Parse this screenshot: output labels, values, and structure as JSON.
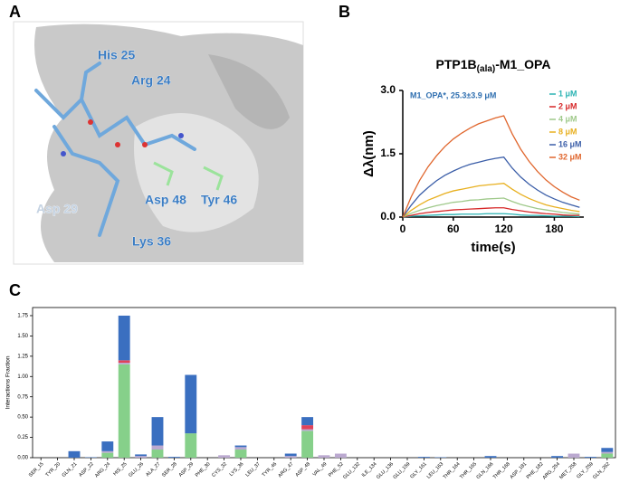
{
  "panels": [
    "A",
    "B",
    "C"
  ],
  "panel_a": {
    "labels": [
      "His 25",
      "Arg 24",
      "Asp 29",
      "Asp 48",
      "Tyr 46",
      "Lys 36"
    ]
  },
  "chart_data": [
    {
      "type": "line",
      "title": "PTP1B",
      "title_subscript": "(ala)",
      "title_suffix": "-M1_OPA",
      "annotation": "M1_OPA*, 25.3±3.9 μM",
      "xlabel": "time(s)",
      "ylabel": "Δλ(nm)",
      "x": [
        0,
        10,
        20,
        30,
        40,
        50,
        60,
        70,
        80,
        90,
        100,
        110,
        120,
        130,
        140,
        150,
        160,
        170,
        180,
        190,
        200,
        210
      ],
      "xlim": [
        0,
        215
      ],
      "xticks": [
        0,
        60,
        120,
        180
      ],
      "ylim": [
        0,
        3
      ],
      "yticks": [
        {
          "value": 0,
          "label": "0.0"
        },
        1.5,
        {
          "value": 3,
          "label": "3.0"
        }
      ],
      "legend": "upper right",
      "series": [
        {
          "name": "1 μM",
          "color": "#2bb3b3",
          "values": [
            0,
            0.02,
            0.03,
            0.04,
            0.05,
            0.06,
            0.06,
            0.07,
            0.07,
            0.07,
            0.08,
            0.08,
            0.08,
            0.07,
            0.05,
            0.04,
            0.04,
            0.03,
            0.02,
            0.02,
            0.02,
            0.01
          ]
        },
        {
          "name": "2 μM",
          "color": "#d62728",
          "values": [
            0,
            0.04,
            0.08,
            0.11,
            0.13,
            0.15,
            0.17,
            0.18,
            0.19,
            0.2,
            0.21,
            0.22,
            0.22,
            0.18,
            0.15,
            0.12,
            0.1,
            0.08,
            0.07,
            0.05,
            0.04,
            0.04
          ]
        },
        {
          "name": "4 μM",
          "color": "#9fc98a",
          "values": [
            0,
            0.09,
            0.16,
            0.22,
            0.27,
            0.31,
            0.35,
            0.37,
            0.4,
            0.41,
            0.43,
            0.44,
            0.45,
            0.37,
            0.3,
            0.25,
            0.2,
            0.17,
            0.14,
            0.11,
            0.09,
            0.07
          ]
        },
        {
          "name": "8 μM",
          "color": "#e8b020",
          "values": [
            0,
            0.16,
            0.29,
            0.4,
            0.48,
            0.56,
            0.62,
            0.66,
            0.7,
            0.74,
            0.76,
            0.78,
            0.8,
            0.66,
            0.54,
            0.44,
            0.36,
            0.29,
            0.24,
            0.2,
            0.16,
            0.13
          ]
        },
        {
          "name": "16 μM",
          "color": "#3b5ea8",
          "values": [
            0,
            0.28,
            0.52,
            0.7,
            0.86,
            0.99,
            1.09,
            1.18,
            1.25,
            1.3,
            1.35,
            1.39,
            1.42,
            1.16,
            0.95,
            0.78,
            0.64,
            0.52,
            0.43,
            0.35,
            0.29,
            0.23
          ]
        },
        {
          "name": "32 μM",
          "color": "#e0662d",
          "values": [
            0,
            0.48,
            0.87,
            1.19,
            1.45,
            1.67,
            1.85,
            1.99,
            2.11,
            2.21,
            2.28,
            2.35,
            2.4,
            1.97,
            1.61,
            1.32,
            1.08,
            0.88,
            0.72,
            0.59,
            0.48,
            0.4
          ]
        }
      ]
    },
    {
      "type": "stacked_bar",
      "ylabel": "Interactions Fraction",
      "categories": [
        "SER_15",
        "TYR_20",
        "GLN_21",
        "ASP_22",
        "ARG_24",
        "HIS_25",
        "GLU_26",
        "ALA_27",
        "SER_28",
        "ASP_29",
        "PHE_30",
        "CYS_32",
        "LYS_36",
        "LEU_37",
        "TYR_46",
        "ARG_47",
        "ASP_48",
        "VAL_49",
        "PHE_52",
        "GLU_132",
        "ILE_134",
        "GLU_136",
        "GLU_159",
        "GLY_161",
        "LEU_163",
        "THR_164",
        "THR_165",
        "GLN_166",
        "THR_168",
        "ASP_181",
        "PHE_182",
        "ARG_254",
        "MET_258",
        "GLY_259",
        "GLN_262"
      ],
      "ylim": [
        0,
        1.85
      ],
      "yticks": [
        {
          "value": 0,
          "label": "0.00"
        },
        0.25,
        {
          "value": 0.5,
          "label": "0.50"
        },
        0.75,
        {
          "value": 1,
          "label": "1.00"
        },
        1.25,
        {
          "value": 1.5,
          "label": "1.50"
        },
        1.75
      ],
      "series": [
        {
          "color": "#86d08a",
          "values": [
            0,
            0,
            0,
            0,
            0.06,
            1.15,
            0,
            0.1,
            0,
            0.3,
            0,
            0,
            0.1,
            0,
            0,
            0,
            0.33,
            0,
            0,
            0,
            0,
            0,
            0,
            0,
            0,
            0,
            0,
            0,
            0,
            0,
            0,
            0,
            0,
            0,
            0.05
          ]
        },
        {
          "color": "#bba9d0",
          "values": [
            0,
            0,
            0,
            0,
            0.02,
            0.02,
            0.02,
            0.05,
            0,
            0,
            0,
            0.03,
            0.03,
            0,
            0,
            0.02,
            0.02,
            0.03,
            0.05,
            0,
            0,
            0,
            0,
            0,
            0,
            0,
            0,
            0,
            0,
            0,
            0,
            0,
            0.05,
            0,
            0.02
          ]
        },
        {
          "color": "#e0435a",
          "values": [
            0,
            0,
            0,
            0,
            0,
            0.03,
            0,
            0,
            0,
            0,
            0,
            0,
            0,
            0,
            0,
            0,
            0.05,
            0,
            0,
            0,
            0,
            0,
            0,
            0,
            0,
            0,
            0,
            0,
            0,
            0,
            0,
            0,
            0,
            0,
            0
          ]
        },
        {
          "color": "#3a6fc0",
          "values": [
            0,
            0,
            0.08,
            0.005,
            0.12,
            0.55,
            0.02,
            0.35,
            0.01,
            0.72,
            0,
            0,
            0.02,
            0,
            0,
            0.03,
            0.1,
            0,
            0,
            0,
            0,
            0,
            0,
            0.01,
            0.005,
            0,
            0,
            0.02,
            0,
            0,
            0,
            0.02,
            0,
            0.01,
            0.05
          ]
        }
      ]
    }
  ]
}
